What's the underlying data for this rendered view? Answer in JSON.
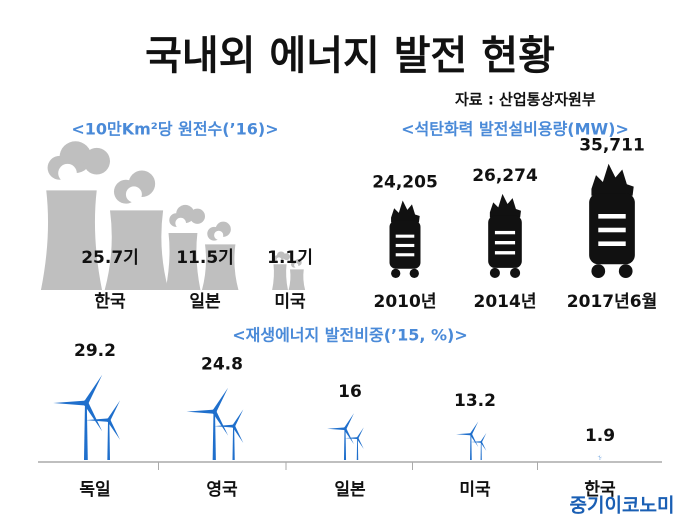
{
  "header": {
    "title": "국내외 에너지 발전 현황",
    "source": "자료 : 산업통상자원부"
  },
  "chart_data": [
    {
      "type": "pictograph",
      "icon": "factory",
      "title": "<10만Km²당 원전수(’16)>",
      "color": "#bfbfbf",
      "categories": [
        "한국",
        "일본",
        "미국"
      ],
      "values": [
        25.7,
        11.5,
        1.1
      ],
      "value_labels": [
        "25.7기",
        "11.5기",
        "1.1기"
      ]
    },
    {
      "type": "pictograph",
      "icon": "coal",
      "title": "<석탄화력 발전설비용량(MW)>",
      "color": "#111111",
      "categories": [
        "2010년",
        "2014년",
        "2017년6월"
      ],
      "values": [
        24205,
        26274,
        35711
      ],
      "value_labels": [
        "24,205",
        "26,274",
        "35,711"
      ]
    },
    {
      "type": "pictograph",
      "icon": "turbine",
      "title": "<재생에너지 발전비중(’15, %)>",
      "color": "#1f6fcc",
      "categories": [
        "독일",
        "영국",
        "일본",
        "미국",
        "한국"
      ],
      "values": [
        29.2,
        24.8,
        16,
        13.2,
        1.9
      ]
    }
  ],
  "footer": {
    "logo": "중기이코노미"
  }
}
